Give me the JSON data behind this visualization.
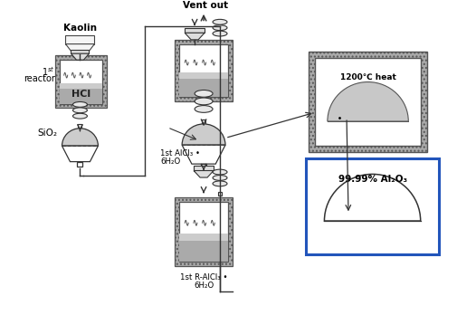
{
  "bg_color": "#ffffff",
  "labels": {
    "kaolin": "Kaolin",
    "reactor1_sup": "1",
    "reactor1_text": "st",
    "reactor1_sub": "reactor",
    "hcl": "HCl",
    "sio2": "SiO₂",
    "vent": "Vent out",
    "alcl3_line1": "1st AlCl₃ •",
    "alcl3_line2": "6H₂O",
    "r_alcl3_line1": "1st R-AlCl₃ •",
    "r_alcl3_line2": "6H₂O",
    "heat": "1200℃ heat",
    "product": "99.99% Al₂O₃"
  },
  "colors": {
    "hatch_gray": "#aaaaaa",
    "inner_white": "#ffffff",
    "liquid_gray": "#999999",
    "top_strip": "#cccccc",
    "wavy_color": "#555555",
    "valve_color": "#dddddd",
    "vessel_gray": "#bbbbbb",
    "funnel_white": "#f0f0f0",
    "line": "#333333",
    "text": "#000000",
    "blue_box": "#2255bb",
    "furnace_inner": "#eeeeee",
    "dome_fill": "#c0c0c0",
    "blue_dome": "#dddddd"
  }
}
